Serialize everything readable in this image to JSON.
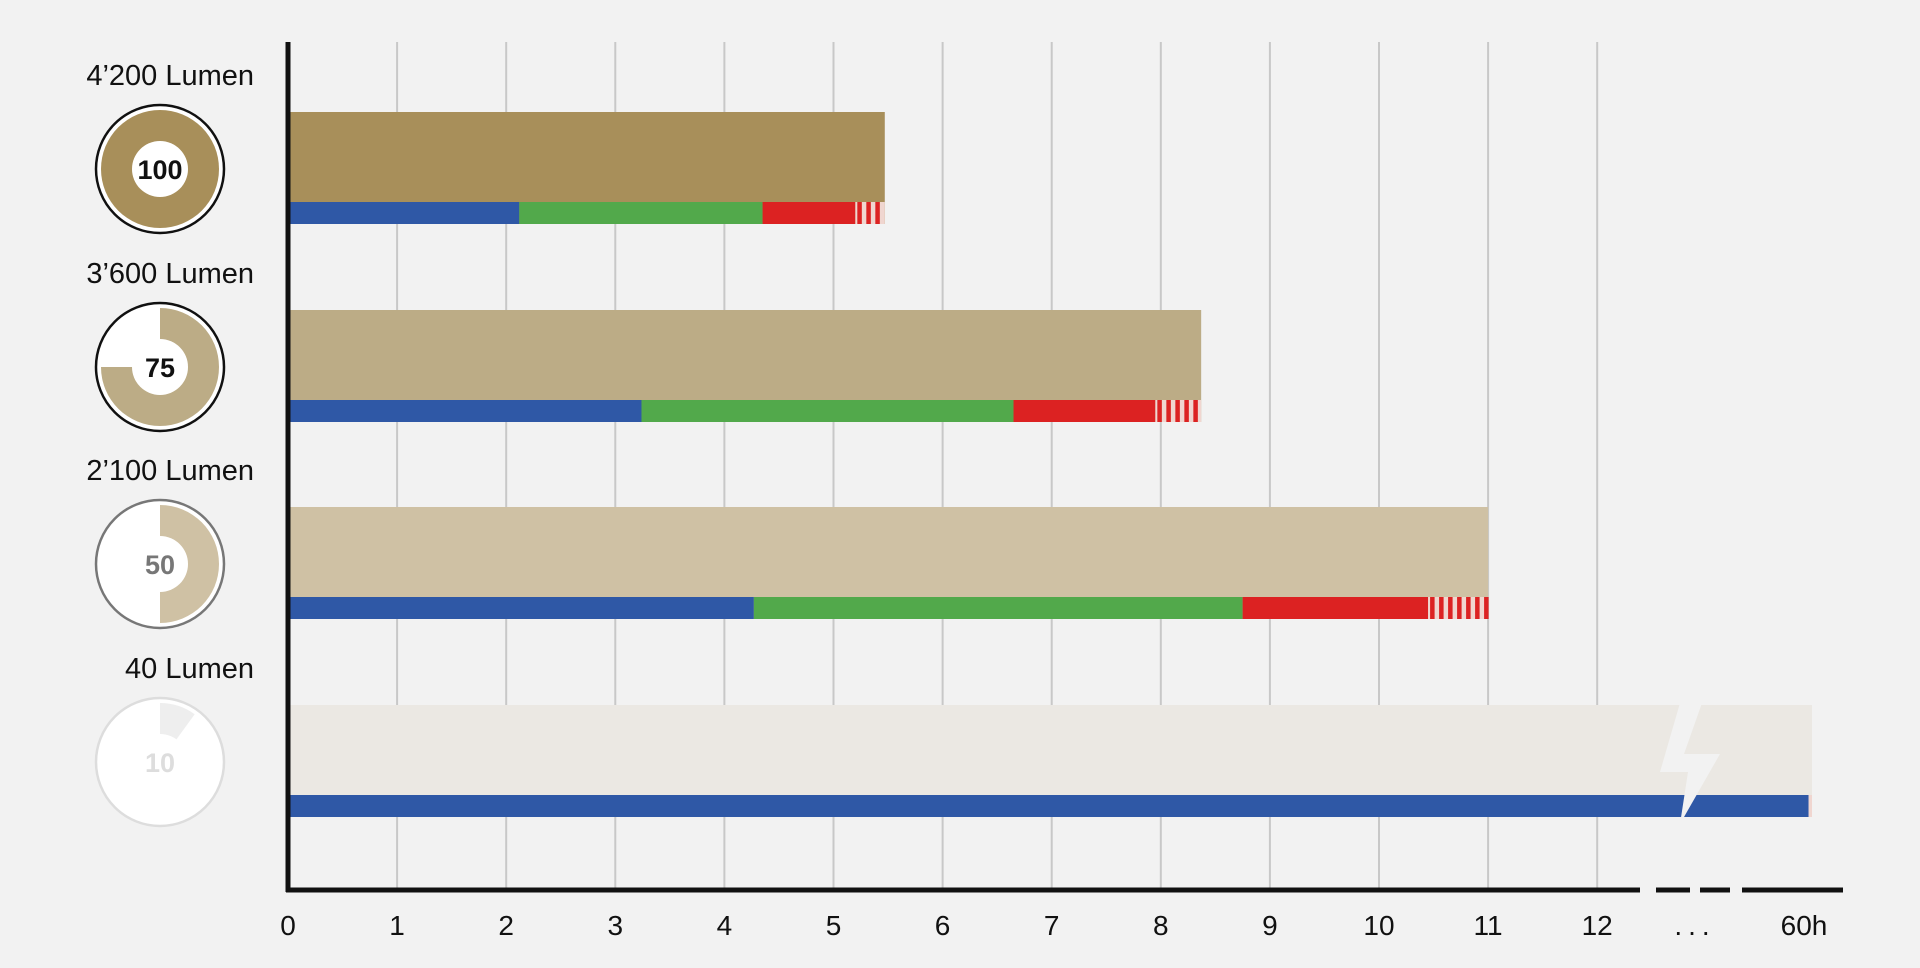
{
  "chart_data": {
    "type": "bar",
    "title": "",
    "xlabel": "",
    "ylabel": "",
    "x_ticks": [
      {
        "value": 0,
        "label": "0"
      },
      {
        "value": 1,
        "label": "1"
      },
      {
        "value": 2,
        "label": "2"
      },
      {
        "value": 3,
        "label": "3"
      },
      {
        "value": 4,
        "label": "4"
      },
      {
        "value": 5,
        "label": "5"
      },
      {
        "value": 6,
        "label": "6"
      },
      {
        "value": 7,
        "label": "7"
      },
      {
        "value": 8,
        "label": "8"
      },
      {
        "value": 9,
        "label": "9"
      },
      {
        "value": 10,
        "label": "10"
      },
      {
        "value": 11,
        "label": "11"
      },
      {
        "value": 12,
        "label": "12"
      },
      {
        "value": 60,
        "label": "60h"
      }
    ],
    "axis_break_label": "...",
    "xlim": [
      0,
      60
    ],
    "grid": true,
    "colors": {
      "blue": "#2f58a6",
      "green": "#52a94b",
      "red": "#dc2222",
      "axis": "#111111",
      "grid": "#c8c8c8"
    },
    "series": [
      {
        "label": "4’200 Lumen",
        "percent": 100,
        "percent_label": "100",
        "total_hours": 5.47,
        "bar_color": "#a88f5a",
        "bar_opacity": 1,
        "segments": [
          {
            "color": "blue",
            "from": 0,
            "to": 2.12
          },
          {
            "color": "green",
            "from": 2.12,
            "to": 4.35
          },
          {
            "color": "red",
            "from": 4.35,
            "to": 5.2
          },
          {
            "color": "red-striped",
            "from": 5.2,
            "to": 5.47
          }
        ],
        "ring_color": "#111111",
        "text_color": "#111111",
        "opacity": 1
      },
      {
        "label": "3’600 Lumen",
        "percent": 75,
        "percent_label": "75",
        "total_hours": 8.37,
        "bar_color": "#bcac86",
        "bar_opacity": 1,
        "segments": [
          {
            "color": "blue",
            "from": 0,
            "to": 3.24
          },
          {
            "color": "green",
            "from": 3.24,
            "to": 6.65
          },
          {
            "color": "red",
            "from": 6.65,
            "to": 7.95
          },
          {
            "color": "red-striped",
            "from": 7.95,
            "to": 8.37
          }
        ],
        "ring_color": "#111111",
        "text_color": "#111111",
        "opacity": 1
      },
      {
        "label": "2’100 Lumen",
        "percent": 50,
        "percent_label": "50",
        "total_hours": 11.0,
        "bar_color": "#cfc1a4",
        "bar_opacity": 1,
        "segments": [
          {
            "color": "blue",
            "from": 0,
            "to": 4.27
          },
          {
            "color": "green",
            "from": 4.27,
            "to": 8.75
          },
          {
            "color": "red",
            "from": 8.75,
            "to": 10.45
          },
          {
            "color": "red-striped",
            "from": 10.45,
            "to": 11.0
          }
        ],
        "ring_color": "#777777",
        "text_color": "#777777",
        "opacity": 1
      },
      {
        "label": "40 Lumen",
        "percent": 10,
        "percent_label": "10",
        "total_hours": 60,
        "bar_color": "#ebe8e3",
        "bar_opacity": 1,
        "segments": [
          {
            "color": "blue",
            "from": 0,
            "to": 59.0
          },
          {
            "color": "red-striped",
            "from": 59.0,
            "to": 60
          }
        ],
        "axis_break": true,
        "ring_color": "#dddddd",
        "text_color": "#dddddd",
        "opacity": 1
      }
    ]
  }
}
